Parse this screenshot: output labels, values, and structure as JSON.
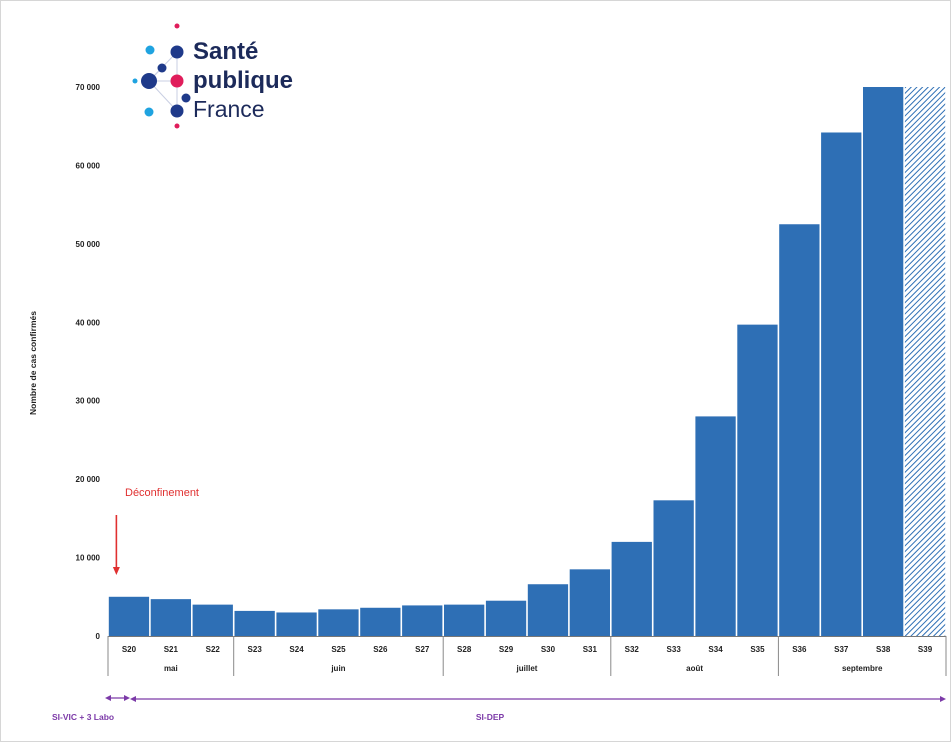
{
  "logo": {
    "line1": "Santé",
    "line2": "publique",
    "line3": "France",
    "colors": {
      "navy": "#1f3a8a",
      "pink": "#e01d5b",
      "cyan": "#1fa3e0"
    }
  },
  "chart_data": {
    "type": "bar",
    "ylabel": "Nombre de cas confirmés",
    "ylim": [
      0,
      70000
    ],
    "yticks": [
      0,
      10000,
      20000,
      30000,
      40000,
      50000,
      60000,
      70000
    ],
    "ytick_labels": [
      "0",
      "10 000",
      "20 000",
      "30 000",
      "40 000",
      "50 000",
      "60 000",
      "70 000"
    ],
    "categories": [
      "S20",
      "S21",
      "S22",
      "S23",
      "S24",
      "S25",
      "S26",
      "S27",
      "S28",
      "S29",
      "S30",
      "S31",
      "S32",
      "S33",
      "S34",
      "S35",
      "S36",
      "S37",
      "S38",
      "S39"
    ],
    "values": [
      5000,
      4700,
      4000,
      3200,
      3000,
      3400,
      3600,
      3900,
      4000,
      4500,
      6600,
      8500,
      12000,
      17300,
      28000,
      39700,
      52500,
      64200,
      70000,
      70000
    ],
    "hatched_last": true,
    "bar_color": "#2e6fb5",
    "months": [
      {
        "label": "mai",
        "start": 0,
        "end": 2
      },
      {
        "label": "juin",
        "start": 3,
        "end": 7
      },
      {
        "label": "juillet",
        "start": 8,
        "end": 11
      },
      {
        "label": "août",
        "start": 12,
        "end": 15
      },
      {
        "label": "septembre",
        "start": 16,
        "end": 19
      }
    ],
    "annotation": {
      "text": "Déconfinement",
      "color": "#e03030",
      "category_index": 0
    },
    "sources": [
      {
        "label": "SI-VIC + 3 Labo",
        "start": 0,
        "end": 0
      },
      {
        "label": "SI-DEP",
        "start": 0,
        "end": 19
      }
    ],
    "source_color": "#7c3aa8"
  }
}
